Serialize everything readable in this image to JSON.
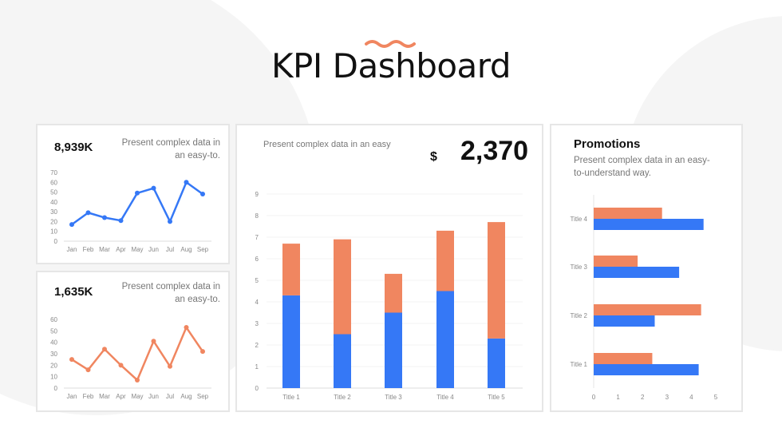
{
  "header": {
    "title": "KPI Dashboard"
  },
  "colors": {
    "blue": "#3578f6",
    "orange": "#f08660",
    "accent": "#f08660",
    "background_shape": "#f5f5f5"
  },
  "cards": {
    "top_left": {
      "value": "8,939K",
      "description": "Present complex data in an easy-to."
    },
    "bottom_left": {
      "value": "1,635K",
      "description": "Present complex data in an easy-to."
    },
    "center": {
      "description": "Present complex data in an easy",
      "currency": "$",
      "value": "2,370"
    },
    "right": {
      "title": "Promotions",
      "description": "Present complex data in an easy-to-understand way."
    }
  },
  "chart_data": [
    {
      "type": "line",
      "categories": [
        "Jan",
        "Feb",
        "Mar",
        "Apr",
        "May",
        "Jun",
        "Jul",
        "Aug",
        "Sep"
      ],
      "values": [
        17,
        29,
        24,
        21,
        49,
        54,
        20,
        60,
        48
      ],
      "ylim": [
        0,
        70
      ],
      "yticks": [
        0,
        10,
        20,
        30,
        40,
        50,
        60,
        70
      ],
      "color": "#3578f6",
      "grid": false
    },
    {
      "type": "line",
      "categories": [
        "Jan",
        "Feb",
        "Mar",
        "Apr",
        "May",
        "Jun",
        "Jul",
        "Aug",
        "Sep"
      ],
      "values": [
        25,
        16,
        34,
        20,
        7,
        41,
        19,
        53,
        32
      ],
      "ylim": [
        0,
        60
      ],
      "yticks": [
        0,
        10,
        20,
        30,
        40,
        50,
        60
      ],
      "color": "#f08660",
      "grid": false
    },
    {
      "type": "bar",
      "stacked": true,
      "categories": [
        "Title 1",
        "Title 2",
        "Title 3",
        "Title 4",
        "Title 5"
      ],
      "series": [
        {
          "values": [
            4.3,
            2.5,
            3.5,
            4.5,
            2.3
          ],
          "color": "#3578f6"
        },
        {
          "values": [
            2.4,
            4.4,
            1.8,
            2.8,
            5.4
          ],
          "color": "#f08660"
        }
      ],
      "ylim": [
        0,
        9
      ],
      "yticks": [
        0,
        1,
        2,
        3,
        4,
        5,
        6,
        7,
        8,
        9
      ],
      "grid": true
    },
    {
      "type": "bar",
      "orientation": "horizontal",
      "categories": [
        "Title 1",
        "Title 2",
        "Title 3",
        "Title 4"
      ],
      "series": [
        {
          "values": [
            4.3,
            2.5,
            3.5,
            4.5
          ],
          "color": "#3578f6"
        },
        {
          "values": [
            2.4,
            4.4,
            1.8,
            2.8
          ],
          "color": "#f08660"
        }
      ],
      "xlim": [
        0,
        5
      ],
      "xticks": [
        0,
        1,
        2,
        3,
        4,
        5
      ],
      "grid": false
    }
  ]
}
